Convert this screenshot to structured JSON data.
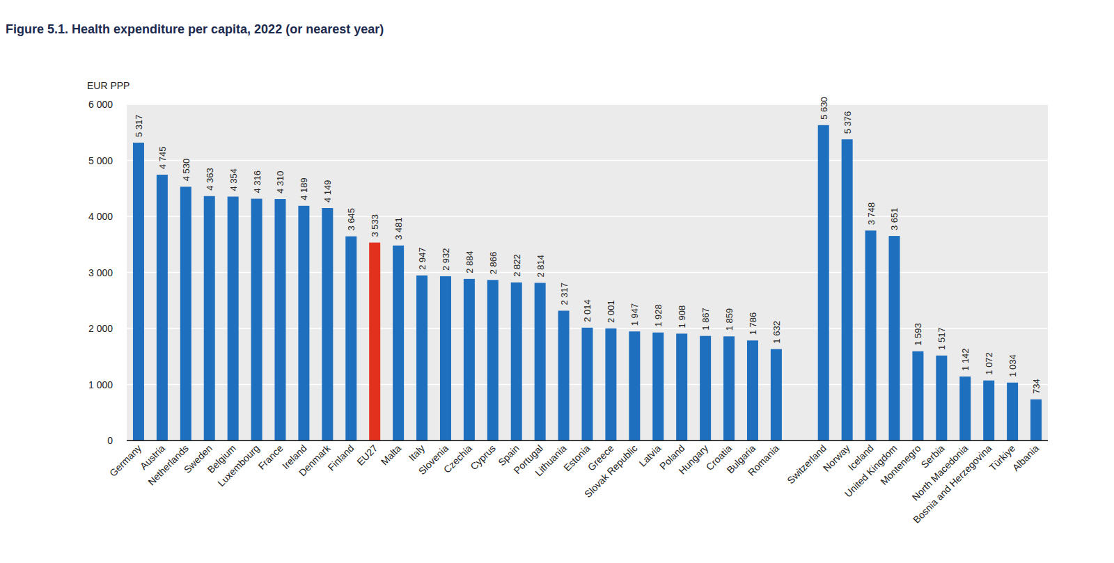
{
  "chart_data": {
    "type": "bar",
    "title": "Figure 5.1. Health expenditure per capita, 2022 (or nearest year)",
    "y_label": "EUR PPP",
    "categories": [
      "Germany",
      "Austria",
      "Netherlands",
      "Sweden",
      "Belgium",
      "Luxembourg",
      "France",
      "Ireland",
      "Denmark",
      "Finland",
      "EU27",
      "Malta",
      "Italy",
      "Slovenia",
      "Czechia",
      "Cyprus",
      "Spain",
      "Portugal",
      "Lithuania",
      "Estonia",
      "Greece",
      "Slovak Republic",
      "Latvia",
      "Poland",
      "Hungary",
      "Croatia",
      "Bulgaria",
      "Romania",
      null,
      "Switzerland",
      "Norway",
      "Iceland",
      "United Kingdom",
      "Montenegro",
      "Serbia",
      "North Macedonia",
      "Bosnia and Herzegovina",
      "Türkiye",
      "Albania"
    ],
    "values": [
      5317,
      4745,
      4530,
      4363,
      4354,
      4316,
      4310,
      4189,
      4149,
      3645,
      3533,
      3481,
      2947,
      2932,
      2884,
      2866,
      2822,
      2814,
      2317,
      2014,
      2001,
      1947,
      1928,
      1908,
      1867,
      1859,
      1786,
      1632,
      null,
      5630,
      5376,
      3748,
      3651,
      1593,
      1517,
      1142,
      1072,
      1034,
      734
    ],
    "value_labels": [
      "5 317",
      "4 745",
      "4 530",
      "4 363",
      "4 354",
      "4 316",
      "4 310",
      "4 189",
      "4 149",
      "3 645",
      "3 533",
      "3 481",
      "2 947",
      "2 932",
      "2 884",
      "2 866",
      "2 822",
      "2 814",
      "2 317",
      "2 014",
      "2 001",
      "1 947",
      "1 928",
      "1 908",
      "1 867",
      "1 859",
      "1 786",
      "1 632",
      null,
      "5 630",
      "5 376",
      "3 748",
      "3 651",
      "1 593",
      "1 517",
      "1 142",
      "1 072",
      "1 034",
      "734"
    ],
    "colors": [
      "#1f6fbf",
      "#1f6fbf",
      "#1f6fbf",
      "#1f6fbf",
      "#1f6fbf",
      "#1f6fbf",
      "#1f6fbf",
      "#1f6fbf",
      "#1f6fbf",
      "#1f6fbf",
      "#e2311d",
      "#1f6fbf",
      "#1f6fbf",
      "#1f6fbf",
      "#1f6fbf",
      "#1f6fbf",
      "#1f6fbf",
      "#1f6fbf",
      "#1f6fbf",
      "#1f6fbf",
      "#1f6fbf",
      "#1f6fbf",
      "#1f6fbf",
      "#1f6fbf",
      "#1f6fbf",
      "#1f6fbf",
      "#1f6fbf",
      "#1f6fbf",
      null,
      "#1f6fbf",
      "#1f6fbf",
      "#1f6fbf",
      "#1f6fbf",
      "#1f6fbf",
      "#1f6fbf",
      "#1f6fbf",
      "#1f6fbf",
      "#1f6fbf",
      "#1f6fbf"
    ],
    "ylim": [
      0,
      6000
    ],
    "yticks": [
      0,
      {
        "value": 1000,
        "label": "1 000"
      },
      {
        "value": 2000,
        "label": "2 000"
      },
      {
        "value": 3000,
        "label": "3 000"
      },
      {
        "value": 4000,
        "label": "4 000"
      },
      {
        "value": 5000,
        "label": "5 000"
      },
      {
        "value": 6000,
        "label": "6 000"
      }
    ],
    "grid": true,
    "data_labels": true
  }
}
